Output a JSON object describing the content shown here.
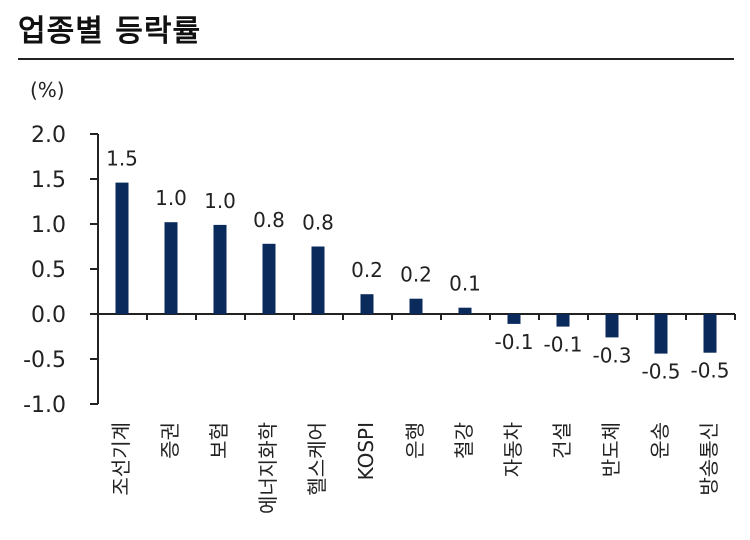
{
  "header": {
    "title": "업종별 등락률"
  },
  "chart_data": {
    "type": "bar",
    "unit": "(%)",
    "categories": [
      "조선기계",
      "증권",
      "보험",
      "에너지화학",
      "헬스케어",
      "KOSPI",
      "은행",
      "철강",
      "자동차",
      "건설",
      "반도체",
      "운송",
      "방송통신"
    ],
    "values": [
      1.5,
      1.0,
      1.0,
      0.8,
      0.8,
      0.2,
      0.2,
      0.1,
      -0.1,
      -0.1,
      -0.3,
      -0.5,
      -0.5
    ],
    "data_labels": [
      "1.5",
      "1.0",
      "1.0",
      "0.8",
      "0.8",
      "0.2",
      "0.2",
      "0.1",
      "-0.1",
      "-0.1",
      "-0.3",
      "-0.5",
      "-0.5"
    ],
    "bar_heights": [
      1.46,
      1.02,
      0.99,
      0.78,
      0.75,
      0.22,
      0.17,
      0.07,
      -0.11,
      -0.14,
      -0.26,
      -0.44,
      -0.43
    ],
    "y_ticks": [
      2.0,
      1.5,
      1.0,
      0.5,
      0.0,
      -0.5,
      -1.0
    ],
    "y_tick_labels": [
      "2.0",
      "1.5",
      "1.0",
      "0.5",
      "0.0",
      "-0.5",
      "-1.0"
    ],
    "ylim": [
      -1.0,
      2.0
    ],
    "grid": false,
    "legend": "none",
    "bar_color": "#0b2a5c"
  }
}
